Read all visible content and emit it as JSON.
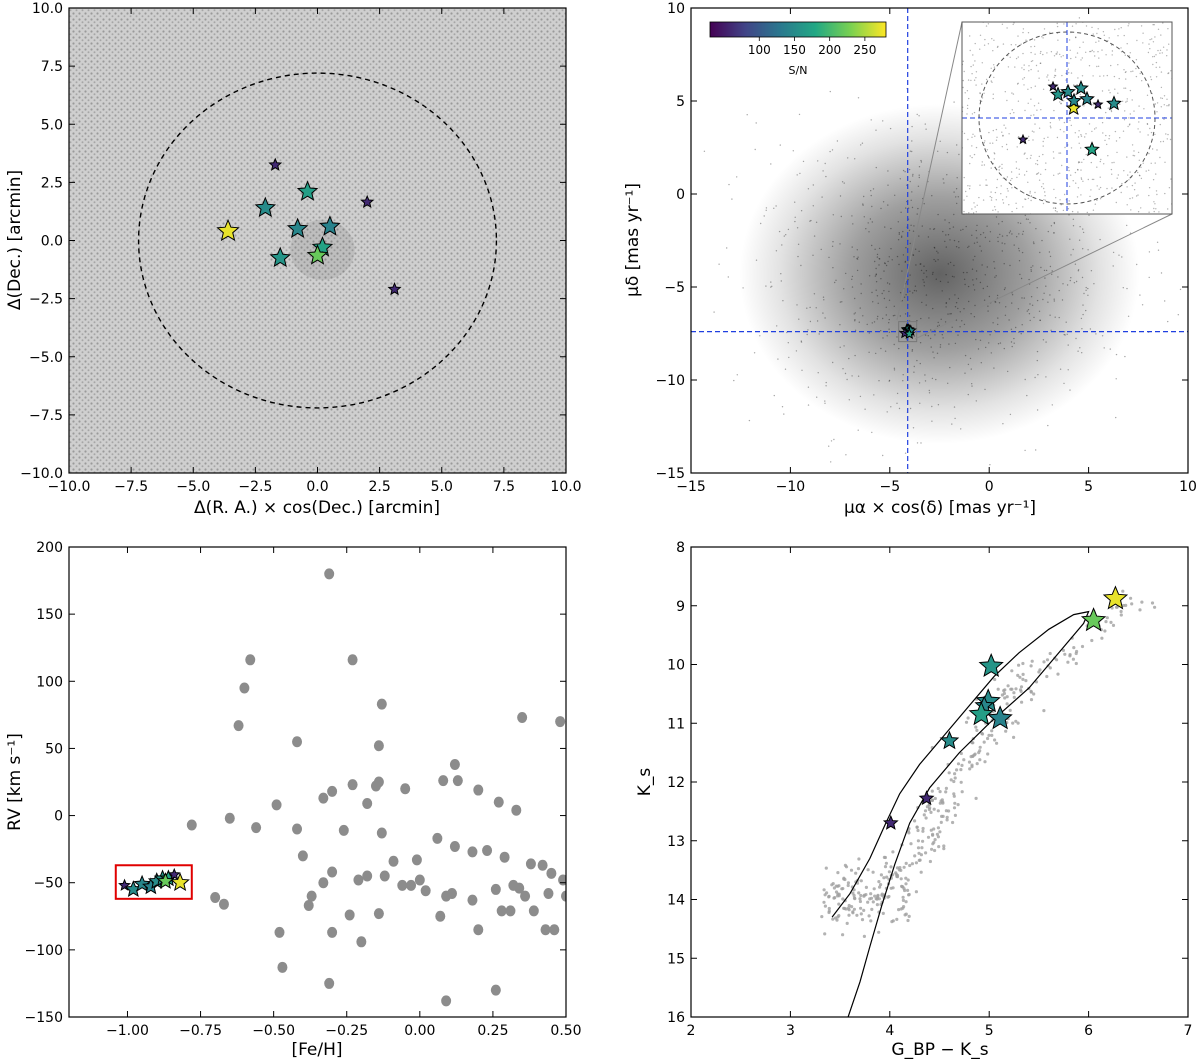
{
  "chart_data": [
    {
      "id": "sky",
      "type": "scatter",
      "title": "",
      "xlabel": "Δ(R. A.) × cos(Dec.) [arcmin]",
      "ylabel": "Δ(Dec.) [arcmin]",
      "xlim": [
        -10,
        10
      ],
      "ylim": [
        -10,
        10
      ],
      "xticks": [
        -10,
        -7.5,
        -5,
        -2.5,
        0,
        2.5,
        5,
        7.5,
        10
      ],
      "xticklabels": [
        "−10.0",
        "−7.5",
        "−5.0",
        "−2.5",
        "0.0",
        "2.5",
        "5.0",
        "7.5",
        "10.0"
      ],
      "yticks": [
        -10,
        -7.5,
        -5,
        -2.5,
        0,
        2.5,
        5,
        7.5,
        10
      ],
      "yticklabels": [
        "−10.0",
        "−7.5",
        "−5.0",
        "−2.5",
        "0.0",
        "2.5",
        "5.0",
        "7.5",
        "10.0"
      ],
      "circle_radius": 7.2,
      "members": [
        {
          "x": -3.6,
          "y": 0.4,
          "sn": 272,
          "big": true
        },
        {
          "x": -1.7,
          "y": 3.25,
          "sn": 60,
          "big": false
        },
        {
          "x": -2.1,
          "y": 1.4,
          "sn": 150,
          "big": false
        },
        {
          "x": -0.4,
          "y": 2.1,
          "sn": 170,
          "big": false
        },
        {
          "x": -0.8,
          "y": 0.5,
          "sn": 145,
          "big": false
        },
        {
          "x": 0.5,
          "y": 0.6,
          "sn": 140,
          "big": false
        },
        {
          "x": 2.0,
          "y": 1.65,
          "sn": 60,
          "big": false
        },
        {
          "x": -1.5,
          "y": -0.75,
          "sn": 160,
          "big": false
        },
        {
          "x": 0.2,
          "y": -0.3,
          "sn": 175,
          "big": false
        },
        {
          "x": 0.0,
          "y": -0.65,
          "sn": 220,
          "big": false
        },
        {
          "x": 3.1,
          "y": -2.1,
          "sn": 60,
          "big": false
        }
      ]
    },
    {
      "id": "pm",
      "type": "scatter",
      "xlabel": "μα × cos(δ) [mas yr⁻¹]",
      "ylabel": "μδ [mas yr⁻¹]",
      "xlim": [
        -15,
        10
      ],
      "ylim": [
        -15,
        10
      ],
      "xticks": [
        -15,
        -10,
        -5,
        0,
        5,
        10
      ],
      "xticklabels": [
        "−15",
        "−10",
        "−5",
        "0",
        "5",
        "10"
      ],
      "yticks": [
        -15,
        -10,
        -5,
        0,
        5,
        10
      ],
      "yticklabels": [
        "−15",
        "−10",
        "−5",
        "0",
        "5",
        "10"
      ],
      "cluster_pm": [
        -4.1,
        -7.4
      ],
      "colorbar": {
        "label": "S/N",
        "min": 30,
        "max": 280,
        "ticks": [
          100,
          150,
          200,
          250
        ],
        "ticklabels": [
          "100",
          "150",
          "200",
          "250"
        ]
      },
      "inset_members": [
        {
          "x": 0.33,
          "y": 0.54,
          "sn": 272
        },
        {
          "x": -0.7,
          "y": 1.75,
          "sn": 60
        },
        {
          "x": 0.05,
          "y": 1.45,
          "sn": 150
        },
        {
          "x": 0.35,
          "y": 0.95,
          "sn": 145
        },
        {
          "x": 1.0,
          "y": 1.05,
          "sn": 140
        },
        {
          "x": 0.7,
          "y": 1.65,
          "sn": 150
        },
        {
          "x": -0.45,
          "y": 1.3,
          "sn": 160
        },
        {
          "x": 1.55,
          "y": 0.75,
          "sn": 60
        },
        {
          "x": 2.35,
          "y": 0.8,
          "sn": 150
        },
        {
          "x": -2.2,
          "y": -1.2,
          "sn": 60
        },
        {
          "x": 1.25,
          "y": -1.75,
          "sn": 175
        }
      ]
    },
    {
      "id": "rvfeh",
      "type": "scatter",
      "xlabel": "[Fe/H]",
      "ylabel": "RV [km s⁻¹]",
      "xlim": [
        -1.2,
        0.5
      ],
      "ylim": [
        -150,
        200
      ],
      "xticks": [
        -1.0,
        -0.75,
        -0.5,
        -0.25,
        0,
        0.25,
        0.5
      ],
      "xticklabels": [
        "−1.00",
        "−0.75",
        "−0.50",
        "−0.25",
        "0.00",
        "0.25",
        "0.50"
      ],
      "yticks": [
        -150,
        -100,
        -50,
        0,
        50,
        100,
        150,
        200
      ],
      "yticklabels": [
        "−150",
        "−100",
        "−50",
        "0",
        "50",
        "100",
        "150",
        "200"
      ],
      "field_stars": [
        [
          -0.31,
          180
        ],
        [
          -0.58,
          116
        ],
        [
          -0.23,
          116
        ],
        [
          -0.6,
          95
        ],
        [
          -0.13,
          83
        ],
        [
          -0.62,
          67
        ],
        [
          -0.42,
          55
        ],
        [
          0.12,
          38
        ],
        [
          0.35,
          73
        ],
        [
          0.48,
          70
        ],
        [
          -0.14,
          52
        ],
        [
          -0.14,
          25
        ],
        [
          -0.3,
          18
        ],
        [
          -0.23,
          23
        ],
        [
          -0.15,
          22
        ],
        [
          -0.05,
          20
        ],
        [
          -0.33,
          13
        ],
        [
          -0.49,
          8
        ],
        [
          0.13,
          26
        ],
        [
          0.08,
          26
        ],
        [
          0.2,
          19
        ],
        [
          0.27,
          10
        ],
        [
          0.33,
          4
        ],
        [
          -0.18,
          9
        ],
        [
          -0.65,
          -2
        ],
        [
          -0.56,
          -9
        ],
        [
          -0.78,
          -7
        ],
        [
          -0.42,
          -10
        ],
        [
          -0.26,
          -11
        ],
        [
          -0.13,
          -13
        ],
        [
          0.06,
          -17
        ],
        [
          0.12,
          -23
        ],
        [
          -0.01,
          -33
        ],
        [
          -0.09,
          -34
        ],
        [
          0.18,
          -27
        ],
        [
          0.23,
          -26
        ],
        [
          0.29,
          -31
        ],
        [
          0.38,
          -36
        ],
        [
          0.42,
          -37
        ],
        [
          0.45,
          -43
        ],
        [
          0.49,
          -48
        ],
        [
          -0.4,
          -30
        ],
        [
          -0.3,
          -42
        ],
        [
          -0.18,
          -45
        ],
        [
          -0.06,
          -52
        ],
        [
          0.0,
          -48
        ],
        [
          0.02,
          -56
        ],
        [
          0.09,
          -60
        ],
        [
          0.26,
          -55
        ],
        [
          0.32,
          -52
        ],
        [
          0.36,
          -60
        ],
        [
          0.44,
          -58
        ],
        [
          0.5,
          -60
        ],
        [
          -0.7,
          -61
        ],
        [
          -0.67,
          -66
        ],
        [
          -0.38,
          -67
        ],
        [
          -0.24,
          -74
        ],
        [
          -0.14,
          -73
        ],
        [
          -0.33,
          -50
        ],
        [
          -0.21,
          -48
        ],
        [
          -0.12,
          -45
        ],
        [
          -0.03,
          -52
        ],
        [
          0.11,
          -58
        ],
        [
          0.18,
          -63
        ],
        [
          0.28,
          -71
        ],
        [
          0.31,
          -71
        ],
        [
          0.39,
          -71
        ],
        [
          0.34,
          -54
        ],
        [
          -0.48,
          -87
        ],
        [
          -0.3,
          -87
        ],
        [
          -0.2,
          -94
        ],
        [
          0.43,
          -85
        ],
        [
          0.46,
          -85
        ],
        [
          -0.47,
          -113
        ],
        [
          -0.31,
          -125
        ],
        [
          0.26,
          -130
        ],
        [
          0.09,
          -138
        ],
        [
          0.2,
          -85
        ],
        [
          -0.37,
          -60
        ],
        [
          0.07,
          -75
        ]
      ],
      "members": [
        {
          "x": -1.01,
          "y": -52,
          "sn": 60
        },
        {
          "x": -0.98,
          "y": -55,
          "sn": 150
        },
        {
          "x": -0.95,
          "y": -51,
          "sn": 145
        },
        {
          "x": -0.92,
          "y": -53,
          "sn": 140
        },
        {
          "x": -0.9,
          "y": -49,
          "sn": 150
        },
        {
          "x": -0.88,
          "y": -47,
          "sn": 160
        },
        {
          "x": -0.86,
          "y": -47,
          "sn": 175
        },
        {
          "x": -0.84,
          "y": -44,
          "sn": 60
        },
        {
          "x": -0.82,
          "y": -50,
          "sn": 272
        },
        {
          "x": -0.87,
          "y": -49,
          "sn": 220
        }
      ],
      "highlight_box": {
        "x0": -1.04,
        "x1": -0.78,
        "y0": -62,
        "y1": -37
      }
    },
    {
      "id": "cmd",
      "type": "scatter",
      "xlabel": "G_BP − K_s",
      "ylabel": "K_s",
      "xlim": [
        2,
        7
      ],
      "ylim": [
        16,
        8
      ],
      "xticks": [
        2,
        3,
        4,
        5,
        6,
        7
      ],
      "xticklabels": [
        "2",
        "3",
        "4",
        "5",
        "6",
        "7"
      ],
      "yticks": [
        8,
        9,
        10,
        11,
        12,
        13,
        14,
        15,
        16
      ],
      "yticklabels": [
        "8",
        "9",
        "10",
        "11",
        "12",
        "13",
        "14",
        "15",
        "16"
      ],
      "isochrone": [
        [
          3.42,
          14.3
        ],
        [
          3.6,
          13.9
        ],
        [
          3.8,
          13.3
        ],
        [
          3.96,
          12.7
        ],
        [
          4.1,
          12.2
        ],
        [
          4.3,
          11.7
        ],
        [
          4.55,
          11.2
        ],
        [
          4.8,
          10.7
        ],
        [
          5.05,
          10.2
        ],
        [
          5.3,
          9.8
        ],
        [
          5.6,
          9.4
        ],
        [
          5.85,
          9.15
        ],
        [
          6.0,
          9.1
        ],
        [
          5.95,
          9.3
        ],
        [
          5.7,
          9.8
        ],
        [
          5.4,
          10.4
        ],
        [
          5.0,
          11.0
        ],
        [
          4.7,
          11.5
        ],
        [
          4.4,
          12.1
        ],
        [
          4.2,
          12.7
        ],
        [
          4.05,
          13.4
        ],
        [
          3.92,
          14.1
        ],
        [
          3.8,
          14.8
        ],
        [
          3.7,
          15.4
        ],
        [
          3.58,
          16.0
        ]
      ],
      "members": [
        {
          "x": 6.27,
          "y": 8.88,
          "sn": 272,
          "big": true
        },
        {
          "x": 6.05,
          "y": 9.25,
          "sn": 220,
          "big": true
        },
        {
          "x": 5.02,
          "y": 10.03,
          "sn": 160,
          "big": true
        },
        {
          "x": 4.99,
          "y": 10.63,
          "sn": 150,
          "big": true
        },
        {
          "x": 4.95,
          "y": 10.7,
          "sn": 145,
          "big": false
        },
        {
          "x": 4.92,
          "y": 10.85,
          "sn": 170,
          "big": true
        },
        {
          "x": 5.11,
          "y": 10.92,
          "sn": 140,
          "big": true
        },
        {
          "x": 4.6,
          "y": 11.3,
          "sn": 150,
          "big": false
        },
        {
          "x": 4.37,
          "y": 12.28,
          "sn": 60,
          "big": false
        },
        {
          "x": 4.01,
          "y": 12.7,
          "sn": 60,
          "big": false
        }
      ]
    }
  ]
}
